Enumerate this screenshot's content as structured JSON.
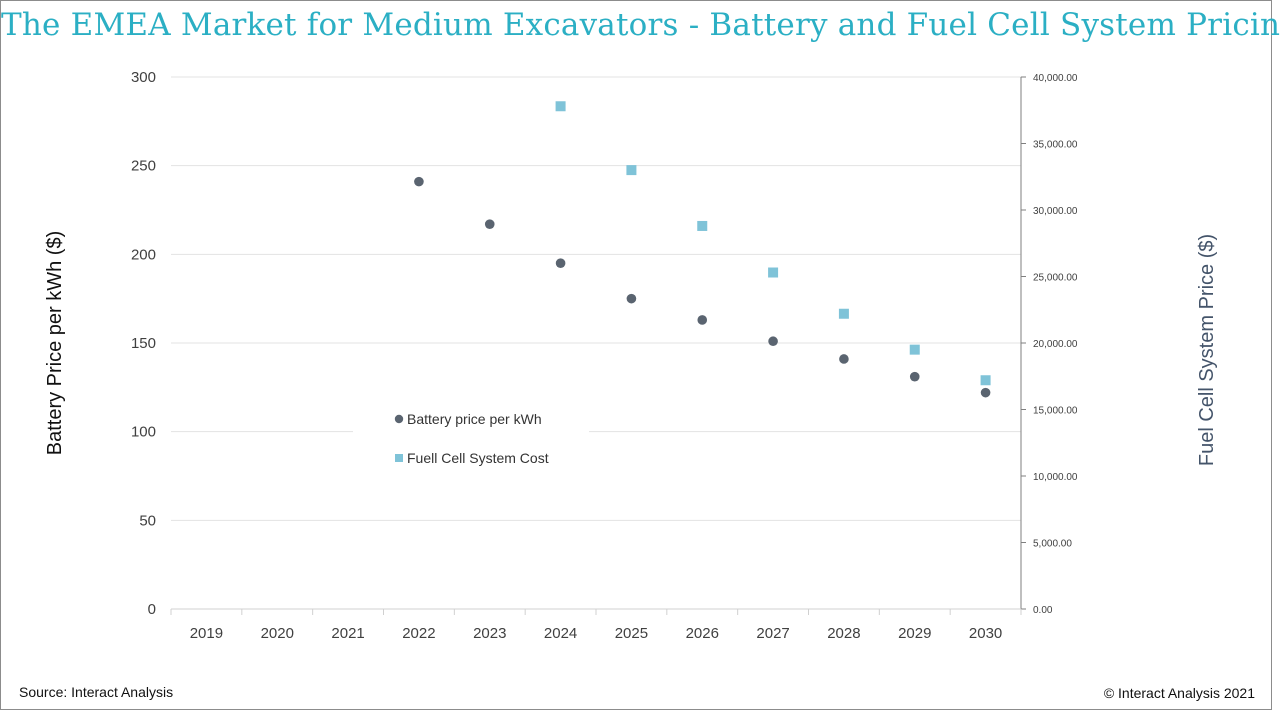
{
  "title": "The EMEA Market for Medium Excavators - Battery and Fuel Cell System Pricing",
  "source": "Source: Interact Analysis",
  "copyright": "© Interact Analysis 2021",
  "colors": {
    "title": "#2bafc4",
    "battery": "#5a6470",
    "fuel_cell": "#7fc3d8",
    "grid": "#e3e3e3"
  },
  "chart_data": {
    "type": "scatter",
    "categories": [
      "2019",
      "2020",
      "2021",
      "2022",
      "2023",
      "2024",
      "2025",
      "2026",
      "2027",
      "2028",
      "2029",
      "2030"
    ],
    "series": [
      {
        "name": "Battery price per kWh",
        "axis": "left",
        "marker": "circle",
        "values": [
          null,
          null,
          null,
          241,
          217,
          195,
          175,
          163,
          151,
          141,
          131,
          122
        ]
      },
      {
        "name": "Fuell Cell System Cost",
        "axis": "right",
        "marker": "square",
        "values": [
          null,
          null,
          null,
          null,
          null,
          37800,
          33000,
          28800,
          25300,
          22200,
          19500,
          17200
        ]
      }
    ],
    "y_left": {
      "label": "Battery Price per kWh ($)",
      "ylim": [
        0,
        300
      ],
      "ticks": [
        0,
        50,
        100,
        150,
        200,
        250,
        300
      ],
      "tick_labels": [
        "0",
        "50",
        "100",
        "150",
        "200",
        "250",
        "300"
      ]
    },
    "y_right": {
      "label": "Fuel Cell System Price ($)",
      "ylim": [
        0,
        40000
      ],
      "ticks": [
        0,
        5000,
        10000,
        15000,
        20000,
        25000,
        30000,
        35000,
        40000
      ],
      "tick_labels": [
        "0.00",
        "5,000.00",
        "10,000.00",
        "15,000.00",
        "20,000.00",
        "25,000.00",
        "30,000.00",
        "35,000.00",
        "40,000.00"
      ]
    },
    "legend": {
      "position": "center-left",
      "entries": [
        "Battery price per kWh",
        "Fuell Cell System Cost"
      ]
    },
    "grid": true
  }
}
